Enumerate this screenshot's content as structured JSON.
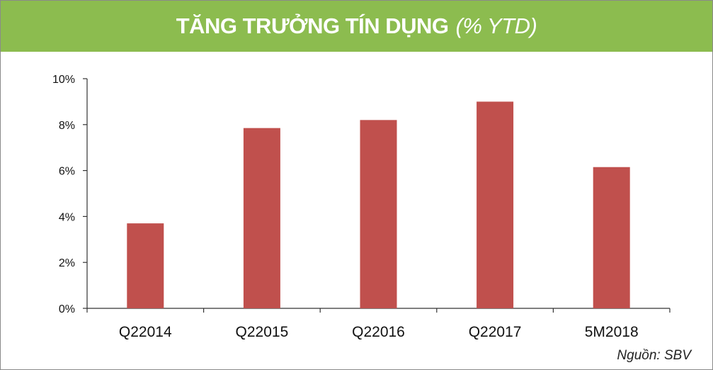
{
  "header": {
    "title": "TĂNG TRƯỞNG TÍN DỤNG",
    "subtitle": "(% YTD)"
  },
  "source": "Nguồn: SBV",
  "colors": {
    "banner": "#8cbc4f",
    "bar": "#c0504d",
    "axis": "#333333"
  },
  "chart_data": {
    "type": "bar",
    "title": "TĂNG TRƯỞNG TÍN DỤNG (% YTD)",
    "categories": [
      "Q22014",
      "Q22015",
      "Q22016",
      "Q22017",
      "5M2018"
    ],
    "values": [
      3.7,
      7.85,
      8.2,
      9.0,
      6.15
    ],
    "ylim": [
      0,
      10
    ],
    "yticks": [
      0,
      2,
      4,
      6,
      8,
      10
    ],
    "ytick_labels": [
      "0%",
      "2%",
      "4%",
      "6%",
      "8%",
      "10%"
    ],
    "xlabel": "",
    "ylabel": "",
    "grid": false,
    "legend": "none"
  }
}
